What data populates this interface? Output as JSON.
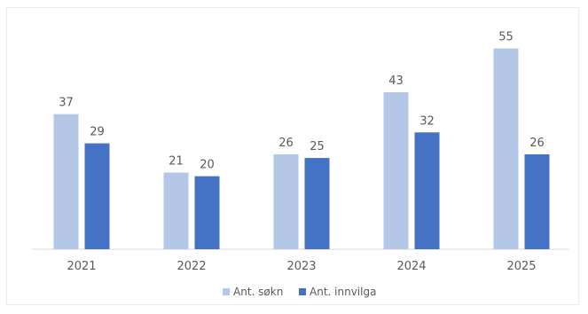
{
  "chart_data": {
    "type": "bar",
    "categories": [
      "2021",
      "2022",
      "2023",
      "2024",
      "2025"
    ],
    "series": [
      {
        "name": "Ant. søkn",
        "values": [
          37,
          21,
          26,
          43,
          55
        ],
        "color": "#b4c7e7"
      },
      {
        "name": "Ant. innvilga",
        "values": [
          29,
          20,
          25,
          32,
          26
        ],
        "color": "#4472c4"
      }
    ],
    "ylim": [
      0,
      60
    ],
    "grid": false,
    "legend_position": "bottom",
    "data_labels": true
  }
}
